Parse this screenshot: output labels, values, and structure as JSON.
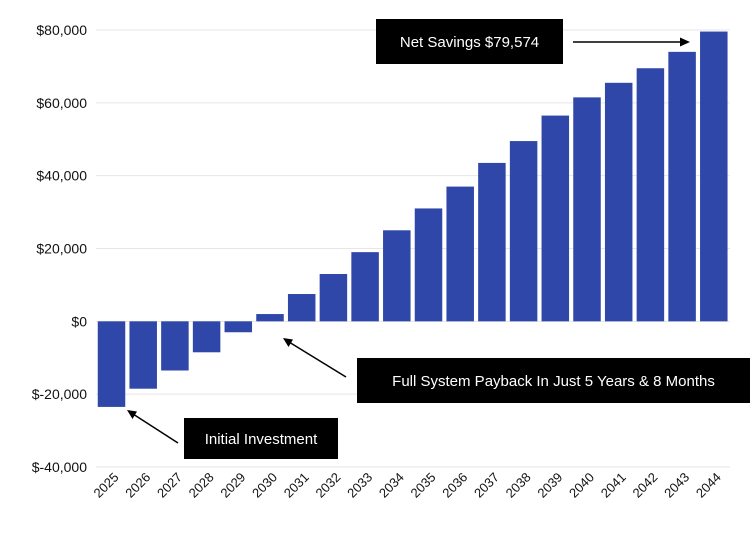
{
  "chart_data": {
    "type": "bar",
    "categories": [
      "2025",
      "2026",
      "2027",
      "2028",
      "2029",
      "2030",
      "2031",
      "2032",
      "2033",
      "2034",
      "2035",
      "2036",
      "2037",
      "2038",
      "2039",
      "2040",
      "2041",
      "2042",
      "2043",
      "2044"
    ],
    "values": [
      -23500,
      -18500,
      -13500,
      -8500,
      -3000,
      2000,
      7500,
      13000,
      19000,
      25000,
      31000,
      37000,
      43500,
      49500,
      56500,
      61500,
      65500,
      69500,
      74000,
      79574
    ],
    "ylim": [
      -40000,
      80000
    ],
    "yticks": [
      80000,
      60000,
      40000,
      20000,
      0,
      -20000,
      -40000
    ],
    "ytick_labels": [
      "$80,000",
      "$60,000",
      "$40,000",
      "$20,000",
      "$0",
      "$-20,000",
      "$-40,000"
    ],
    "title": "",
    "xlabel": "",
    "ylabel": "",
    "grid": true,
    "legend": "none",
    "bar_color": "#2e47a9",
    "annotations": {
      "net_savings": "Net Savings $79,574",
      "payback": "Full System Payback In Just 5 Years & 8 Months",
      "initial": "Initial Investment"
    }
  }
}
